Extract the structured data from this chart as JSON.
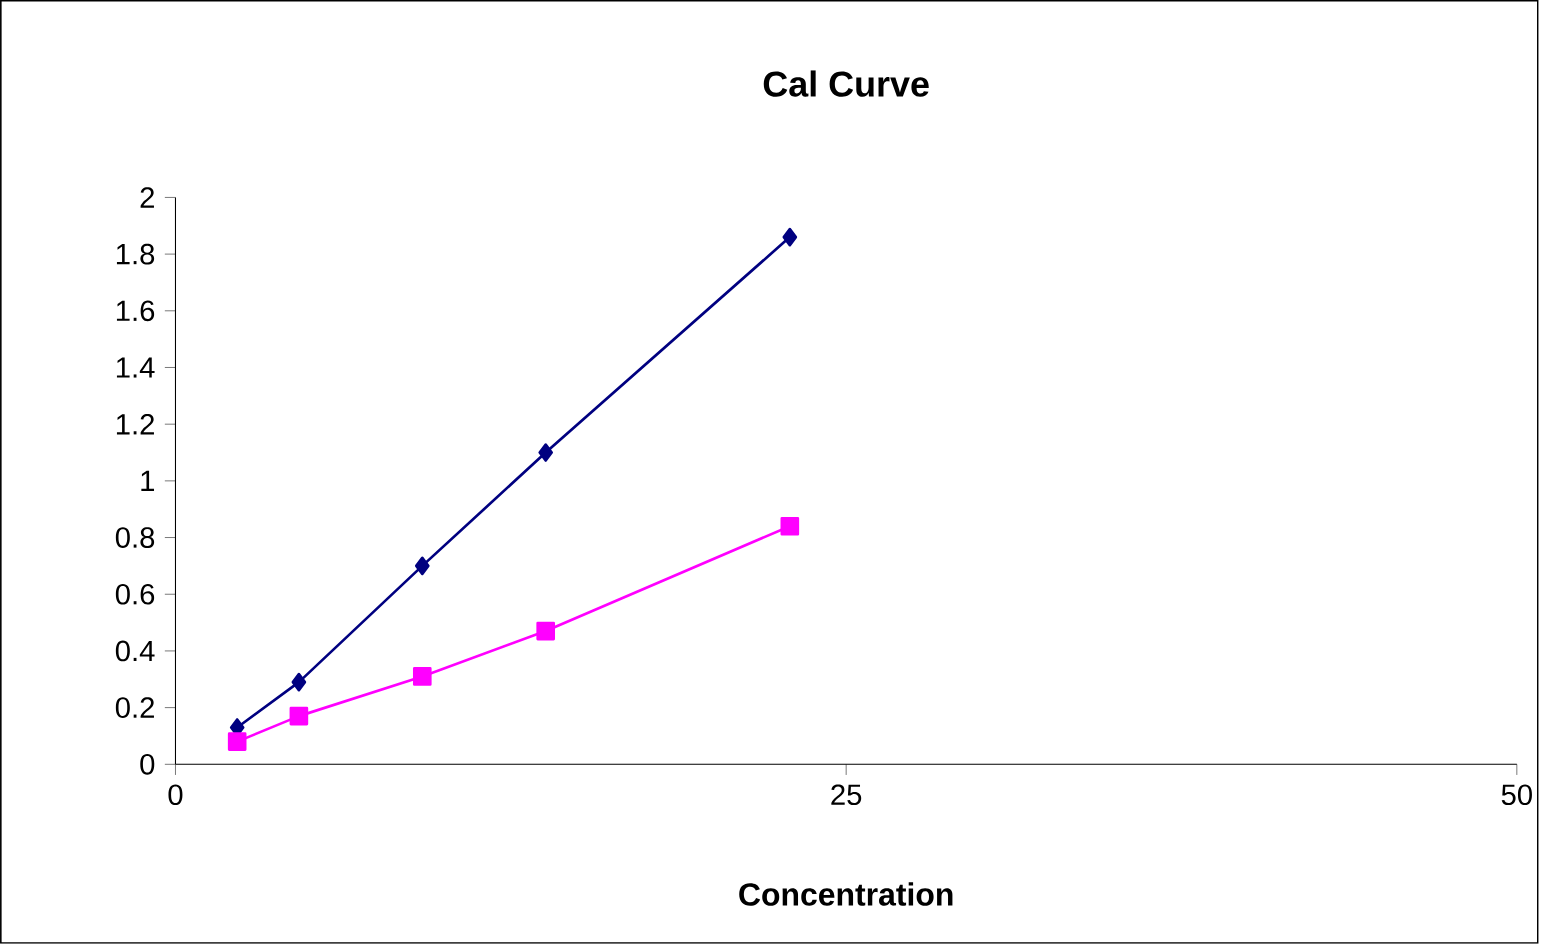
{
  "chart_data": {
    "type": "line",
    "title": "Cal Curve",
    "xlabel": "Concentration",
    "xlim": [
      0,
      50
    ],
    "xticks": [
      0,
      25,
      50
    ],
    "ylim": [
      0,
      2
    ],
    "yticks": [
      0,
      0.2,
      0.4,
      0.6,
      0.8,
      1,
      1.2,
      1.4,
      1.6,
      1.8,
      2
    ],
    "grid": false,
    "series": [
      {
        "color": "#000080",
        "marker": "diamond",
        "x": [
          2.3,
          4.6,
          9.2,
          13.8,
          22.9
        ],
        "values": [
          0.13,
          0.29,
          0.7,
          1.1,
          1.86
        ]
      },
      {
        "color": "#ff00ff",
        "marker": "square",
        "x": [
          2.3,
          4.6,
          9.2,
          13.8,
          22.9
        ],
        "values": [
          0.08,
          0.17,
          0.31,
          0.47,
          0.84
        ]
      }
    ]
  }
}
